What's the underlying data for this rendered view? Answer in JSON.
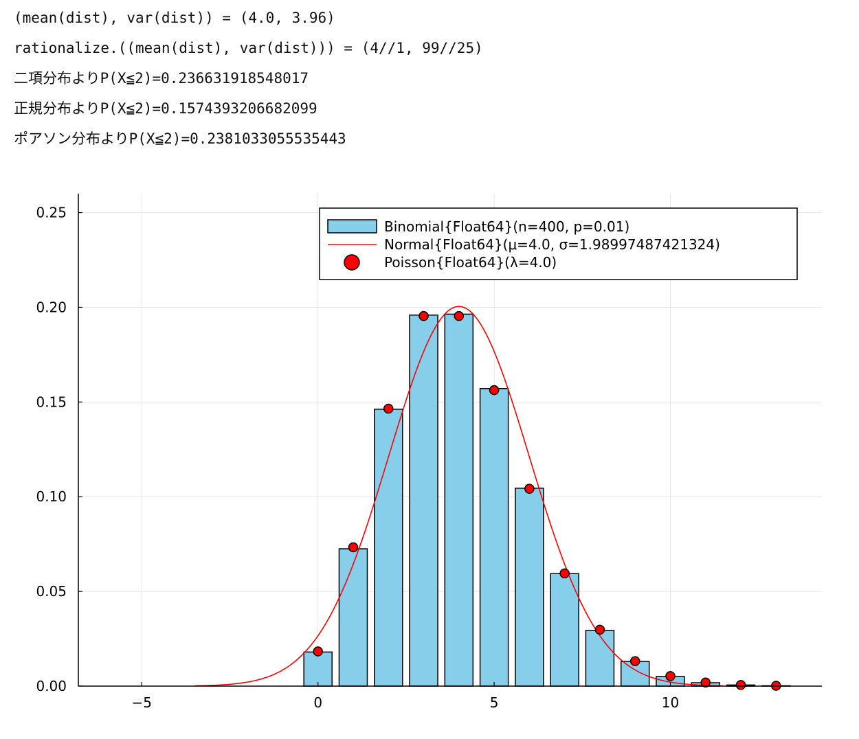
{
  "console": {
    "lines": [
      "(mean(dist), var(dist)) = (4.0, 3.96)",
      "rationalize.((mean(dist), var(dist))) = (4//1, 99//25)",
      "二項分布よりP(X≦2)=0.236631918548017",
      "正規分布よりP(X≦2)=0.1574393206682099",
      "ポアソン分布よりP(X≦2)=0.2381033055535443"
    ]
  },
  "chart_data": {
    "type": "bar",
    "xlim": [
      -6.8,
      14.3
    ],
    "ylim": [
      0,
      0.26
    ],
    "xticks": [
      {
        "value": -5,
        "label": "−5"
      },
      {
        "value": 0,
        "label": "0"
      },
      {
        "value": 5,
        "label": "5"
      },
      {
        "value": 10,
        "label": "10"
      }
    ],
    "yticks": [
      {
        "value": 0,
        "label": "0.00"
      },
      {
        "value": 0.05,
        "label": "0.05"
      },
      {
        "value": 0.1,
        "label": "0.10"
      },
      {
        "value": 0.15,
        "label": "0.15"
      },
      {
        "value": 0.2,
        "label": "0.20"
      },
      {
        "value": 0.25,
        "label": "0.25"
      }
    ],
    "grid": true,
    "legend_position": "top-right",
    "bar_color": "#87ceeb",
    "line_color": "#ff0000",
    "point_color": "#ff0000",
    "series": [
      {
        "name": "Binomial{Float64}(n=400, p=0.01)",
        "type": "bar",
        "x": [
          0,
          1,
          2,
          3,
          4,
          5,
          6,
          7,
          8,
          9,
          10,
          11,
          12,
          13
        ],
        "values": [
          0.018,
          0.0725,
          0.1462,
          0.1959,
          0.1964,
          0.1571,
          0.1045,
          0.0594,
          0.0294,
          0.013,
          0.0051,
          0.0018,
          0.0006,
          0.0002
        ]
      },
      {
        "name": "Normal{Float64}(μ=4.0, σ=1.98997487421324)",
        "type": "line",
        "mu": 4.0,
        "sigma": 1.98997487421324,
        "x_range": [
          -3.5,
          11.5
        ]
      },
      {
        "name": "Poisson{Float64}(λ=4.0)",
        "type": "scatter",
        "x": [
          0,
          1,
          2,
          3,
          4,
          5,
          6,
          7,
          8,
          9,
          10,
          11,
          12,
          13
        ],
        "values": [
          0.0183,
          0.0733,
          0.1465,
          0.1954,
          0.1954,
          0.1563,
          0.1042,
          0.0595,
          0.0298,
          0.0132,
          0.0053,
          0.0019,
          0.0006,
          0.0002
        ]
      }
    ]
  }
}
